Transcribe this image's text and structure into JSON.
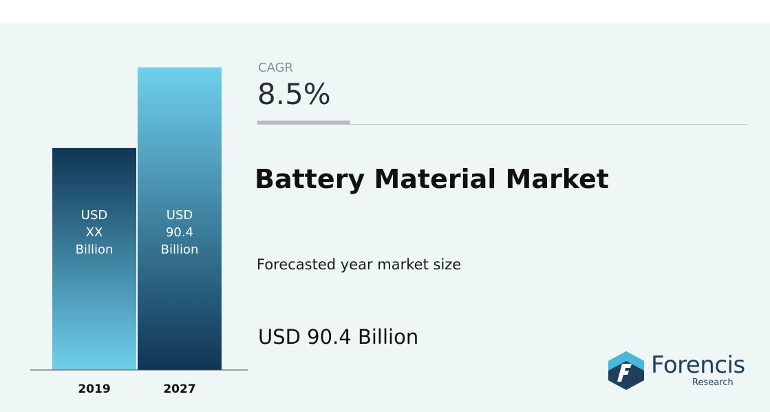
{
  "chart_data": {
    "type": "bar",
    "categories": [
      "2019",
      "2027"
    ],
    "values": [
      66.3,
      90.4
    ],
    "bar_labels": [
      [
        "USD",
        "XX",
        "Billion"
      ],
      [
        "USD",
        "90.4",
        "Billion"
      ]
    ],
    "ylim": [
      0,
      92
    ],
    "grid": false,
    "bar_colors": {
      "2019": {
        "top": "#0f3555",
        "bottom": "#6fd0ec"
      },
      "2027": {
        "top": "#6fd0ec",
        "bottom": "#0f3555"
      }
    }
  },
  "cagr": {
    "label": "CAGR",
    "value": "8.5%"
  },
  "title": "Battery Material Market",
  "forecast": {
    "label": "Forecasted year market size",
    "value": "USD 90.4 Billion"
  },
  "logo": {
    "name": "Forencis",
    "sub": "Research",
    "icon": "forencis-logo-icon"
  },
  "colors": {
    "background": "#eef6f6",
    "axis": "#4a4a4a",
    "logo": "#1f3f5c",
    "accent": "#47b8dc"
  }
}
